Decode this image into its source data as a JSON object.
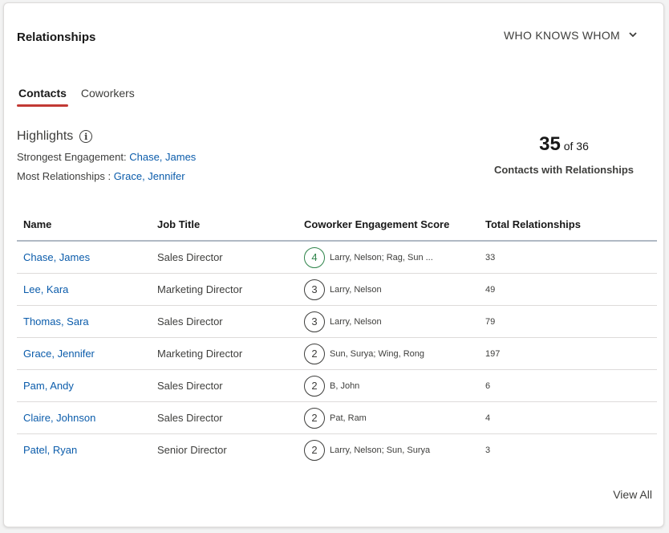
{
  "header": {
    "title": "Relationships",
    "view_selector": "WHO KNOWS WHOM"
  },
  "tabs": [
    {
      "label": "Contacts",
      "active": true
    },
    {
      "label": "Coworkers",
      "active": false
    }
  ],
  "highlights": {
    "heading": "Highlights",
    "strongest_label": "Strongest Engagement:",
    "strongest_value": "Chase, James",
    "most_label": "Most Relationships :",
    "most_value": "Grace, Jennifer"
  },
  "stat": {
    "count": "35",
    "of_text": "of 36",
    "label": "Contacts with Relationships"
  },
  "table": {
    "columns": [
      "Name",
      "Job Title",
      "Coworker Engagement Score",
      "Total Relationships"
    ],
    "rows": [
      {
        "name": "Chase, James",
        "job": "Sales Director",
        "score": "4",
        "coworkers": "Larry, Nelson; Rag, Sun ...",
        "total": "33"
      },
      {
        "name": "Lee, Kara",
        "job": "Marketing Director",
        "score": "3",
        "coworkers": "Larry, Nelson",
        "total": "49"
      },
      {
        "name": "Thomas, Sara",
        "job": "Sales  Director",
        "score": "3",
        "coworkers": "Larry, Nelson",
        "total": "79"
      },
      {
        "name": "Grace, Jennifer",
        "job": "Marketing Director",
        "score": "2",
        "coworkers": "Sun, Surya; Wing, Rong",
        "total": "197"
      },
      {
        "name": "Pam, Andy",
        "job": "Sales Director",
        "score": "2",
        "coworkers": "B, John",
        "total": "6"
      },
      {
        "name": "Claire, Johnson",
        "job": "Sales Director",
        "score": "2",
        "coworkers": "Pat, Ram",
        "total": "4"
      },
      {
        "name": "Patel, Ryan",
        "job": "Senior Director",
        "score": "2",
        "coworkers": "Larry, Nelson; Sun, Surya",
        "total": "3"
      }
    ]
  },
  "footer": {
    "view_all": "View All"
  },
  "colors": {
    "accent_tab": "#c23934",
    "link": "#0b5cab",
    "top_score": "#2e844a"
  },
  "icons": {
    "info": "info-icon",
    "dropdown": "chevron-down-icon"
  }
}
